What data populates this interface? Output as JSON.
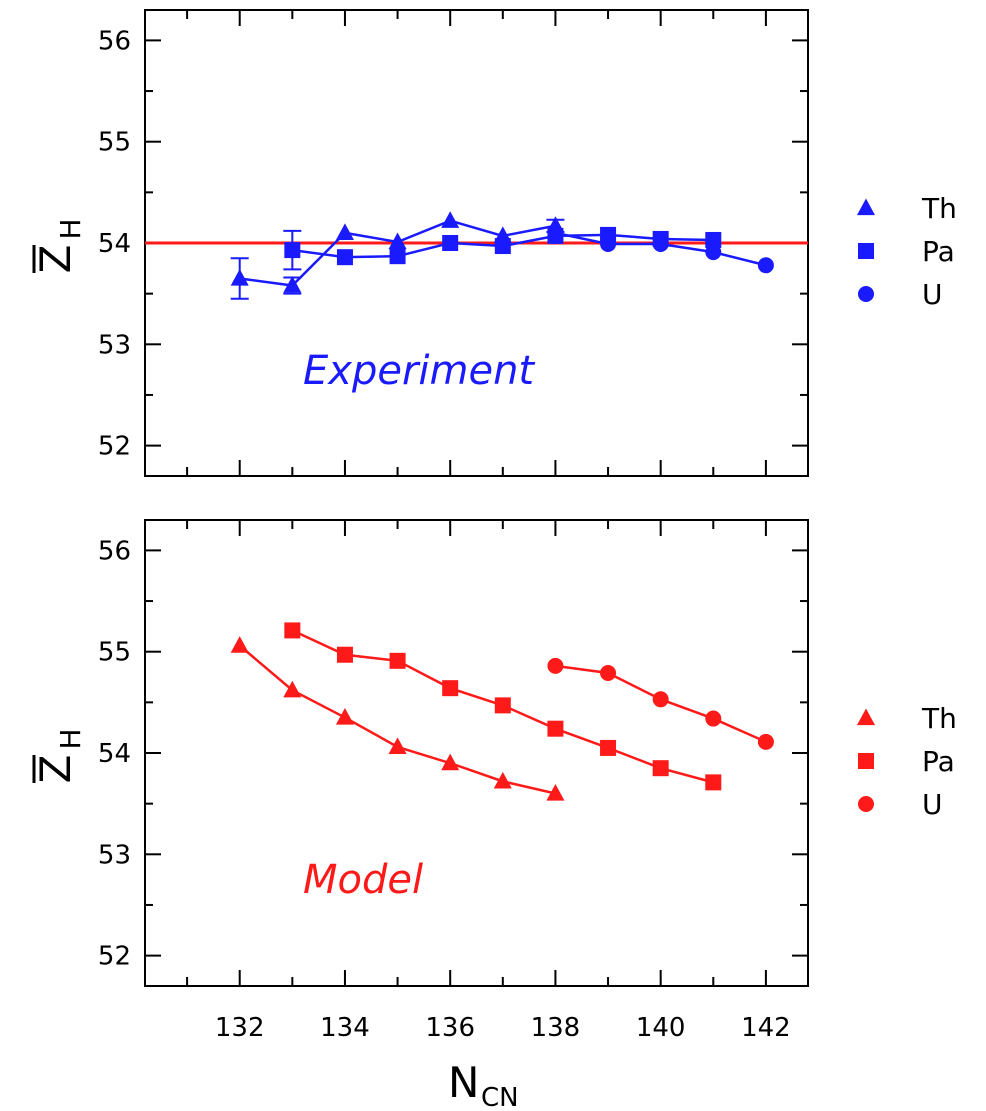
{
  "colors": {
    "experiment": "#1a1aff",
    "model": "#ff1a1a",
    "axis": "#000000"
  },
  "x_axis": {
    "label_main": "N",
    "label_sub": "CN",
    "ticks": [
      "132",
      "134",
      "136",
      "138",
      "140",
      "142"
    ]
  },
  "chart_data": [
    {
      "type": "line",
      "annotation": "Experiment",
      "xlim": [
        130.2,
        142.8
      ],
      "ylim": [
        51.7,
        56.3
      ],
      "yticks": [
        "52",
        "53",
        "54",
        "55",
        "56"
      ],
      "ylabel_main": "Z",
      "ylabel_sub": "H",
      "reference_line": {
        "y": 54.0,
        "color": "#ff1a1a"
      },
      "legend": [
        {
          "name": "Th",
          "marker": "triangle"
        },
        {
          "name": "Pa",
          "marker": "square"
        },
        {
          "name": "U",
          "marker": "circle"
        }
      ],
      "legend_placement": "right, outside plot",
      "series": [
        {
          "name": "Th",
          "marker": "triangle",
          "x": [
            132,
            133,
            134,
            135,
            136,
            137,
            138
          ],
          "y": [
            53.65,
            53.58,
            54.1,
            54.01,
            54.22,
            54.07,
            54.17
          ],
          "err": [
            0.2,
            0.08,
            0,
            0,
            0,
            0,
            0.06
          ]
        },
        {
          "name": "Pa",
          "marker": "square",
          "x": [
            133,
            134,
            135,
            136,
            137,
            138,
            139,
            140,
            141
          ],
          "y": [
            53.93,
            53.86,
            53.87,
            54.0,
            53.97,
            54.07,
            54.08,
            54.04,
            54.03
          ],
          "err": [
            0.19,
            0,
            0,
            0,
            0,
            0,
            0,
            0,
            0
          ]
        },
        {
          "name": "U",
          "marker": "circle",
          "x": [
            138,
            139,
            140,
            141,
            142
          ],
          "y": [
            54.1,
            53.99,
            53.99,
            53.91,
            53.78
          ],
          "err": [
            0,
            0,
            0,
            0,
            0
          ]
        }
      ]
    },
    {
      "type": "line",
      "annotation": "Model",
      "xlim": [
        130.2,
        142.8
      ],
      "ylim": [
        51.7,
        56.3
      ],
      "yticks": [
        "52",
        "53",
        "54",
        "55",
        "56"
      ],
      "ylabel_main": "Z",
      "ylabel_sub": "H",
      "legend": [
        {
          "name": "Th",
          "marker": "triangle"
        },
        {
          "name": "Pa",
          "marker": "square"
        },
        {
          "name": "U",
          "marker": "circle"
        }
      ],
      "legend_placement": "right, outside plot",
      "series": [
        {
          "name": "Th",
          "marker": "triangle",
          "x": [
            132,
            133,
            134,
            135,
            136,
            137,
            138
          ],
          "y": [
            55.06,
            54.62,
            54.35,
            54.06,
            53.9,
            53.72,
            53.6
          ]
        },
        {
          "name": "Pa",
          "marker": "square",
          "x": [
            133,
            134,
            135,
            136,
            137,
            138,
            139,
            140,
            141
          ],
          "y": [
            55.21,
            54.97,
            54.91,
            54.64,
            54.47,
            54.24,
            54.05,
            53.85,
            53.71
          ]
        },
        {
          "name": "U",
          "marker": "circle",
          "x": [
            138,
            139,
            140,
            141,
            142
          ],
          "y": [
            54.86,
            54.79,
            54.53,
            54.34,
            54.11
          ]
        }
      ]
    }
  ]
}
